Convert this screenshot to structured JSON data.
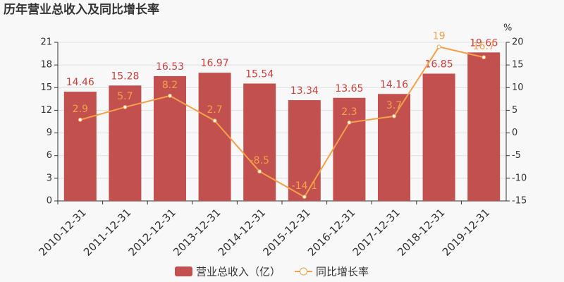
{
  "chart_data": {
    "type": "bar",
    "title": "历年营业总收入及同比增长率",
    "categories": [
      "2010-12-31",
      "2011-12-31",
      "2012-12-31",
      "2013-12-31",
      "2014-12-31",
      "2015-12-31",
      "2016-12-31",
      "2017-12-31",
      "2018-12-31",
      "2019-12-31"
    ],
    "series": [
      {
        "name": "营业总收入（亿）",
        "type": "bar",
        "color": "#c1504e",
        "label_color": "#c9413f",
        "values": [
          14.46,
          15.28,
          16.53,
          16.97,
          15.54,
          13.34,
          13.65,
          14.16,
          16.85,
          19.66
        ]
      },
      {
        "name": "同比增长率",
        "type": "line",
        "axis": "y2",
        "color": "#f5a04a",
        "values": [
          2.9,
          5.7,
          8.2,
          2.7,
          -8.5,
          -14.1,
          2.3,
          3.7,
          19,
          16.7
        ]
      }
    ],
    "ylim": [
      0,
      21
    ],
    "yticks": [
      0,
      3,
      6,
      9,
      12,
      15,
      18,
      21
    ],
    "y2label": "%",
    "y2lim": [
      -15,
      20
    ],
    "y2ticks": [
      -15,
      -10,
      -5,
      0,
      5,
      10,
      15,
      20
    ],
    "grid": true
  }
}
